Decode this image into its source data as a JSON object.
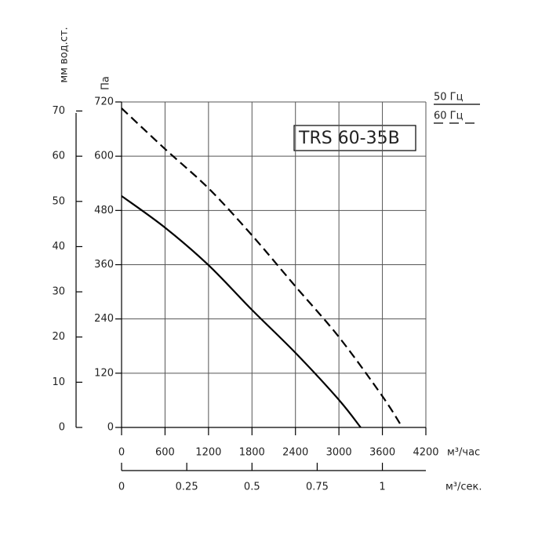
{
  "chart_data": {
    "type": "line",
    "model_label": "TRS 60-35B",
    "y_label": "Па",
    "y2_label": "мм вод.ст.",
    "x_label": "м³/час",
    "x2_label": "м³/сек.",
    "xlim": [
      0,
      4200
    ],
    "xticks": [
      0,
      600,
      1200,
      1800,
      2400,
      3000,
      3600,
      4200
    ],
    "ylim": [
      0,
      720
    ],
    "yticks": [
      0,
      120,
      240,
      360,
      480,
      600,
      720
    ],
    "y2lim": [
      0,
      72
    ],
    "y2ticks": [
      0,
      10,
      20,
      30,
      40,
      50,
      60,
      70
    ],
    "x2lim": [
      0,
      1.1667
    ],
    "x2ticks": [
      0,
      0.25,
      0.5,
      0.75,
      1
    ],
    "grid": true,
    "series": [
      {
        "name": "50 Гц",
        "color": "#000000",
        "dash": "solid",
        "x": [
          0,
          600,
          1200,
          1800,
          2400,
          3000,
          3300
        ],
        "values": [
          512,
          442,
          359,
          260,
          165,
          61,
          0
        ]
      },
      {
        "name": "60 Гц",
        "color": "#000000",
        "dash": "dashed",
        "x": [
          0,
          600,
          1200,
          1800,
          2400,
          3000,
          3600,
          3875
        ],
        "values": [
          706,
          616,
          529,
          425,
          312,
          200,
          69,
          0
        ]
      }
    ]
  }
}
